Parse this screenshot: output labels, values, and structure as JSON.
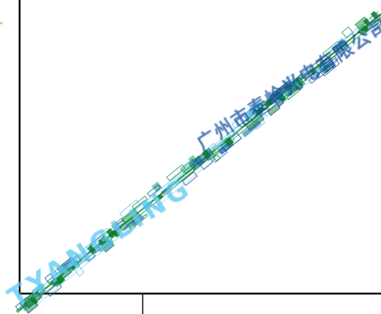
{
  "colors": {
    "background": "#ffffff",
    "axis": "#111111",
    "watermark_primary": "#1f8f3a",
    "watermark_secondary": "#58c6f2",
    "watermark_dark": "#0e4f9a",
    "edge_mark": "#c8c86a"
  },
  "watermark": {
    "latin_text": "TYANGLING",
    "cjk_text": "广州市泰岭光电有限公司",
    "orientation": "diagonal-lower-left-to-upper-right"
  }
}
